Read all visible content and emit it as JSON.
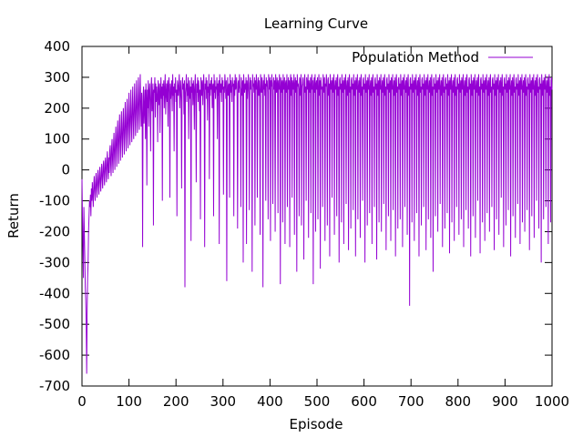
{
  "chart_data": {
    "type": "line",
    "title": "Learning Curve",
    "xlabel": "Episode",
    "ylabel": "Return",
    "xlim": [
      0,
      1000
    ],
    "ylim": [
      -700,
      400
    ],
    "x_ticks": [
      0,
      100,
      200,
      300,
      400,
      500,
      600,
      700,
      800,
      900,
      1000
    ],
    "y_ticks": [
      -700,
      -600,
      -500,
      -400,
      -300,
      -200,
      -100,
      0,
      100,
      200,
      300,
      400
    ],
    "grid": false,
    "legend_position": "top-right",
    "series": [
      {
        "name": "Population Method",
        "color": "#9400d3",
        "x_start": 0,
        "x_step": 1,
        "values": [
          -30,
          -150,
          -250,
          -350,
          -120,
          -200,
          -280,
          -380,
          -420,
          -500,
          -660,
          -450,
          -350,
          -300,
          -200,
          -150,
          -100,
          -120,
          -80,
          -150,
          -60,
          -100,
          -40,
          -80,
          -120,
          -50,
          -20,
          -70,
          -100,
          -40,
          -10,
          -60,
          -90,
          -30,
          0,
          -50,
          -80,
          -20,
          10,
          -40,
          -70,
          -10,
          20,
          -30,
          -60,
          10,
          30,
          -20,
          -50,
          20,
          40,
          -10,
          -40,
          30,
          60,
          0,
          -30,
          40,
          -10,
          60,
          80,
          20,
          -20,
          70,
          100,
          30,
          -10,
          80,
          120,
          50,
          0,
          90,
          140,
          70,
          10,
          110,
          160,
          80,
          20,
          120,
          180,
          90,
          30,
          130,
          190,
          100,
          40,
          150,
          200,
          110,
          50,
          160,
          220,
          120,
          60,
          170,
          230,
          130,
          70,
          180,
          250,
          140,
          80,
          190,
          260,
          150,
          90,
          200,
          270,
          160,
          100,
          210,
          280,
          170,
          110,
          220,
          290,
          180,
          120,
          230,
          300,
          190,
          130,
          240,
          310,
          200,
          140,
          250,
          180,
          -250,
          240,
          270,
          150,
          200,
          260,
          100,
          280,
          230,
          -50,
          260,
          200,
          290,
          140,
          250,
          280,
          220,
          60,
          270,
          300,
          190,
          230,
          280,
          -180,
          260,
          250,
          300,
          170,
          280,
          220,
          270,
          240,
          90,
          290,
          260,
          210,
          280,
          120,
          250,
          300,
          230,
          270,
          -100,
          280,
          240,
          290,
          200,
          260,
          310,
          180,
          250,
          280,
          220,
          290,
          140,
          270,
          300,
          250,
          -90,
          280,
          230,
          260,
          290,
          190,
          310,
          240,
          270,
          60,
          280,
          250,
          300,
          220,
          260,
          -150,
          290,
          270,
          240,
          280,
          310,
          200,
          250,
          290,
          230,
          -60,
          270,
          300,
          260,
          280,
          180,
          290,
          -380,
          250,
          270,
          310,
          220,
          280,
          240,
          300,
          100,
          260,
          290,
          230,
          270,
          -230,
          300,
          250,
          280,
          210,
          290,
          260,
          130,
          270,
          310,
          240,
          -40,
          280,
          250,
          300,
          220,
          290,
          270,
          190,
          260,
          -160,
          300,
          280,
          240,
          290,
          210,
          270,
          310,
          250,
          -250,
          280,
          260,
          300,
          230,
          290,
          160,
          270,
          250,
          310,
          -30,
          280,
          240,
          290,
          260,
          300,
          200,
          270,
          280,
          -150,
          310,
          250,
          290,
          230,
          270,
          260,
          300,
          100,
          280,
          240,
          290,
          -240,
          310,
          270,
          250,
          280,
          220,
          300,
          260,
          290,
          -80,
          270,
          250,
          310,
          280,
          230,
          290,
          -360,
          260,
          300,
          240,
          270,
          280,
          -90,
          310,
          250,
          290,
          260,
          220,
          300,
          270,
          280,
          -150,
          290,
          240,
          310,
          260,
          270,
          300,
          230,
          -190,
          280,
          290,
          250,
          310,
          270,
          260,
          -120,
          300,
          280,
          240,
          290,
          -300,
          310,
          270,
          250,
          280,
          260,
          300,
          -240,
          290,
          230,
          270,
          310,
          250,
          -130,
          280,
          300,
          260,
          290,
          240,
          -330,
          310,
          270,
          280,
          250,
          300,
          -180,
          290,
          260,
          310,
          270,
          -90,
          280,
          300,
          240,
          290,
          260,
          -210,
          310,
          280,
          250,
          300,
          270,
          -380,
          290,
          260,
          310,
          240,
          280,
          -100,
          300,
          270,
          290,
          250,
          -160,
          310,
          280,
          260,
          300,
          -230,
          290,
          270,
          310,
          240,
          -110,
          280,
          300,
          260,
          290,
          -200,
          310,
          270,
          250,
          300,
          280,
          -140,
          290,
          260,
          310,
          270,
          -370,
          300,
          280,
          250,
          290,
          -170,
          310,
          260,
          270,
          300,
          -240,
          280,
          290,
          250,
          310,
          -120,
          270,
          300,
          260,
          290,
          -250,
          280,
          310,
          240,
          300,
          -90,
          290,
          270,
          260,
          310,
          -210,
          280,
          300,
          250,
          290,
          -330,
          310,
          270,
          280,
          260,
          -150,
          300,
          290,
          240,
          310,
          -180,
          270,
          280,
          300,
          260,
          -290,
          290,
          310,
          250,
          270,
          -100,
          300,
          280,
          260,
          310,
          -220,
          290,
          270,
          250,
          300,
          -140,
          280,
          310,
          260,
          290,
          -370,
          270,
          300,
          250,
          310,
          -200,
          280,
          290,
          260,
          300,
          -160,
          270,
          310,
          240,
          290,
          -320,
          300,
          280,
          260,
          270,
          -120,
          310,
          290,
          250,
          300,
          -230,
          280,
          270,
          310,
          260,
          -180,
          290,
          300,
          240,
          280,
          -280,
          310,
          270,
          260,
          290,
          -90,
          300,
          280,
          250,
          310,
          -210,
          270,
          290,
          260,
          300,
          -150,
          280,
          310,
          240,
          270,
          -300,
          290,
          300,
          260,
          280,
          -170,
          310,
          270,
          250,
          290,
          -240,
          300,
          280,
          260,
          310,
          -110,
          270,
          290,
          240,
          300,
          -260,
          280,
          310,
          250,
          270,
          -190,
          290,
          300,
          260,
          280,
          -130,
          310,
          270,
          240,
          290,
          -280,
          300,
          280,
          260,
          310,
          -160,
          270,
          290,
          250,
          300,
          -220,
          280,
          310,
          240,
          270,
          -100,
          290,
          300,
          260,
          280,
          -300,
          310,
          270,
          250,
          290,
          -180,
          300,
          280,
          260,
          310,
          -140,
          270,
          290,
          240,
          300,
          -240,
          280,
          310,
          250,
          270,
          -120,
          290,
          300,
          260,
          280,
          -290,
          310,
          270,
          240,
          290,
          -170,
          300,
          280,
          260,
          310,
          -200,
          270,
          290,
          250,
          300,
          -110,
          280,
          310,
          240,
          270,
          -260,
          290,
          300,
          260,
          280,
          -150,
          310,
          270,
          250,
          290,
          -230,
          300,
          280,
          260,
          310,
          -130,
          270,
          290,
          240,
          300,
          -280,
          280,
          310,
          250,
          270,
          -190,
          290,
          300,
          260,
          280,
          -160,
          310,
          270,
          240,
          290,
          -250,
          300,
          280,
          260,
          310,
          -120,
          270,
          290,
          250,
          300,
          -210,
          280,
          310,
          240,
          270,
          -440,
          290,
          300,
          260,
          280,
          -170,
          310,
          270,
          250,
          290,
          -230,
          300,
          280,
          260,
          310,
          -140,
          270,
          290,
          240,
          300,
          -280,
          280,
          310,
          250,
          270,
          -180,
          290,
          300,
          260,
          280,
          -120,
          310,
          270,
          240,
          290,
          -260,
          300,
          280,
          260,
          310,
          -160,
          270,
          290,
          250,
          300,
          -220,
          280,
          310,
          240,
          270,
          -330,
          290,
          300,
          260,
          280,
          -150,
          310,
          270,
          250,
          290,
          -200,
          300,
          280,
          260,
          310,
          -110,
          270,
          290,
          240,
          300,
          -250,
          280,
          310,
          250,
          270,
          -190,
          290,
          300,
          260,
          280,
          -140,
          310,
          270,
          240,
          290,
          -270,
          300,
          280,
          260,
          310,
          -170,
          270,
          290,
          250,
          300,
          -230,
          280,
          310,
          240,
          270,
          -120,
          290,
          300,
          260,
          280,
          -210,
          310,
          270,
          250,
          290,
          -160,
          300,
          280,
          260,
          310,
          -250,
          270,
          290,
          240,
          300,
          -130,
          280,
          310,
          250,
          270,
          -190,
          290,
          300,
          260,
          280,
          -280,
          310,
          270,
          240,
          290,
          -150,
          300,
          280,
          260,
          310,
          -220,
          270,
          290,
          250,
          300,
          -100,
          280,
          310,
          240,
          270,
          -270,
          290,
          300,
          260,
          280,
          -170,
          310,
          270,
          250,
          290,
          -230,
          300,
          280,
          260,
          310,
          -140,
          270,
          290,
          240,
          300,
          -200,
          280,
          310,
          250,
          270,
          -120,
          290,
          300,
          260,
          280,
          -260,
          310,
          270,
          240,
          290,
          -160,
          300,
          280,
          260,
          310,
          -210,
          270,
          290,
          250,
          300,
          -90,
          280,
          310,
          240,
          270,
          -250,
          290,
          300,
          260,
          280,
          -180,
          310,
          270,
          250,
          290,
          -130,
          300,
          280,
          260,
          310,
          -280,
          270,
          290,
          240,
          300,
          -150,
          280,
          310,
          250,
          270,
          -220,
          290,
          300,
          260,
          280,
          -110,
          310,
          270,
          240,
          290,
          -240,
          300,
          280,
          260,
          310,
          -170,
          270,
          290,
          250,
          300,
          -200,
          280,
          310,
          240,
          270,
          -130,
          290,
          300,
          260,
          280,
          -260,
          310,
          270,
          250,
          290,
          -150,
          300,
          280,
          260,
          310,
          -220,
          270,
          290,
          240,
          300,
          -100,
          280,
          310,
          250,
          270,
          -190,
          290,
          300,
          260,
          280,
          -300,
          310,
          270,
          240,
          290,
          -160,
          300,
          280,
          260,
          310,
          -120,
          270,
          290,
          250,
          300,
          -240,
          280,
          310,
          240,
          270,
          -170,
          290,
          300,
          260,
          280,
          -210,
          310,
          270,
          250,
          290,
          -140,
          300,
          280,
          260,
          310,
          -80,
          270,
          290,
          240,
          300,
          -60,
          280,
          310,
          250,
          270,
          -40,
          290,
          300,
          260,
          280,
          -20,
          310,
          270,
          240,
          290,
          -10,
          300,
          280,
          260,
          310,
          -270
        ]
      }
    ]
  }
}
